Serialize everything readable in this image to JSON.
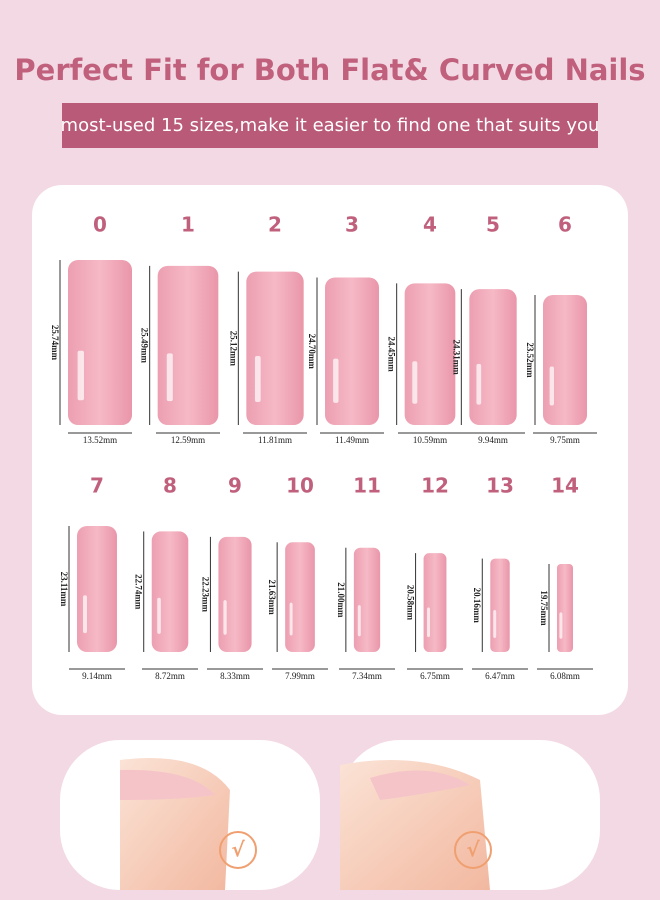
{
  "header": {
    "title": "Perfect Fit for Both Flat& Curved Nails",
    "subtitle": "most-used 15 sizes,make it easier to find one that suits you"
  },
  "nails": [
    {
      "label": "0",
      "length": "25.74mm",
      "width": "13.52mm"
    },
    {
      "label": "1",
      "length": "25.49mm",
      "width": "12.59mm"
    },
    {
      "label": "2",
      "length": "25.12mm",
      "width": "11.81mm"
    },
    {
      "label": "3",
      "length": "24.70mm",
      "width": "11.49mm"
    },
    {
      "label": "4",
      "length": "24.45mm",
      "width": "10.59mm"
    },
    {
      "label": "5",
      "length": "24.31mm",
      "width": "9.94mm"
    },
    {
      "label": "6",
      "length": "23.52mm",
      "width": "9.75mm"
    },
    {
      "label": "7",
      "length": "23.11mm",
      "width": "9.14mm"
    },
    {
      "label": "8",
      "length": "22.74mm",
      "width": "8.72mm"
    },
    {
      "label": "9",
      "length": "22.23mm",
      "width": "8.33mm"
    },
    {
      "label": "10",
      "length": "21.63mm",
      "width": "7.99mm"
    },
    {
      "label": "11",
      "length": "21.00mm",
      "width": "7.34mm"
    },
    {
      "label": "12",
      "length": "20.58mm",
      "width": "6.75mm"
    },
    {
      "label": "13",
      "length": "20.16mm",
      "width": "6.47mm"
    },
    {
      "label": "14",
      "length": "19.75mm",
      "width": "6.08mm"
    }
  ],
  "fit_examples": [
    {
      "check": "√"
    },
    {
      "check": "√"
    }
  ]
}
